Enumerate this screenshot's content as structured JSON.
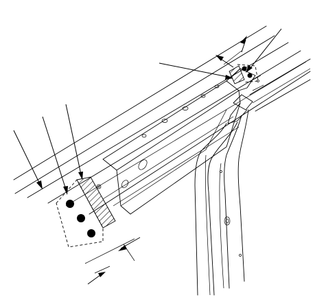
{
  "diagram": {
    "kind": "technical-line-drawing",
    "subject": "roof-rail-to-pillar-joint",
    "colors": {
      "ink": "#000000",
      "paper": "#ffffff"
    },
    "callouts": {
      "lower_left_count": 3,
      "lower_dimension_arrows": 2,
      "upper_right_count": 4,
      "upper_dimension_arrows": 2
    },
    "spot_welds": {
      "lower_panel": 3,
      "upper_panel": 2
    }
  }
}
